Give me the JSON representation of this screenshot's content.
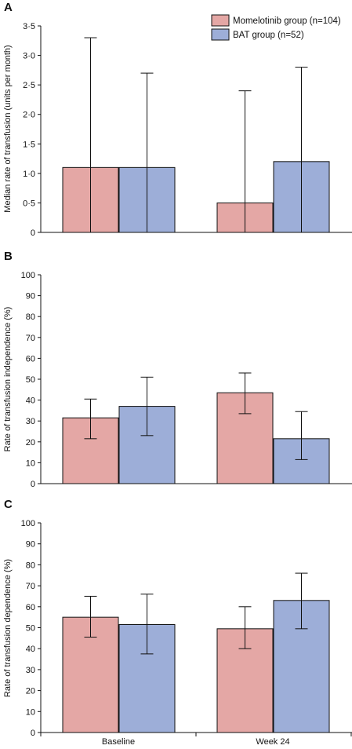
{
  "chart_data": [
    {
      "type": "bar",
      "panel_label": "A",
      "categories": [
        "Baseline",
        "Week 24"
      ],
      "ylabel": "Median rate of transfusion (units per month)",
      "ylim": [
        0,
        3.5
      ],
      "yticks": [
        0,
        0.5,
        1.0,
        1.5,
        2.0,
        2.5,
        3.0,
        3.5
      ],
      "ytick_labels": [
        "0",
        "0·5",
        "1·0",
        "1·5",
        "2·0",
        "2·5",
        "3·0",
        "3·5"
      ],
      "error_style": "range",
      "legend": {
        "placement": "top-right"
      },
      "series": [
        {
          "name": "Momelotinib group (n=104)",
          "color": "#e4a7a5",
          "values": [
            1.1,
            0.5
          ],
          "err_low": [
            0,
            0
          ],
          "err_high": [
            3.3,
            2.4
          ]
        },
        {
          "name": "BAT group (n=52)",
          "color": "#9daed8",
          "values": [
            1.1,
            1.2
          ],
          "err_low": [
            0,
            0
          ],
          "err_high": [
            2.7,
            2.8
          ]
        }
      ]
    },
    {
      "type": "bar",
      "panel_label": "B",
      "categories": [
        "Baseline",
        "Week 24"
      ],
      "ylabel": "Rate of transfusion independence (%)",
      "ylim": [
        0,
        100
      ],
      "yticks": [
        0,
        10,
        20,
        30,
        40,
        50,
        60,
        70,
        80,
        90,
        100
      ],
      "ytick_labels": [
        "0",
        "10",
        "20",
        "30",
        "40",
        "50",
        "60",
        "70",
        "80",
        "90",
        "100"
      ],
      "series": [
        {
          "name": "Momelotinib group (n=104)",
          "color": "#e4a7a5",
          "values": [
            31.5,
            43.5
          ],
          "err_low": [
            21.5,
            33.5
          ],
          "err_high": [
            40.5,
            53
          ]
        },
        {
          "name": "BAT group (n=52)",
          "color": "#9daed8",
          "values": [
            37,
            21.5
          ],
          "err_low": [
            23,
            11.5
          ],
          "err_high": [
            51,
            34.5
          ]
        }
      ]
    },
    {
      "type": "bar",
      "panel_label": "C",
      "categories": [
        "Baseline",
        "Week 24"
      ],
      "ylabel": "Rate of transfusion dependence (%)",
      "ylim": [
        0,
        100
      ],
      "yticks": [
        0,
        10,
        20,
        30,
        40,
        50,
        60,
        70,
        80,
        90,
        100
      ],
      "ytick_labels": [
        "0",
        "10",
        "20",
        "30",
        "40",
        "50",
        "60",
        "70",
        "80",
        "90",
        "100"
      ],
      "series": [
        {
          "name": "Momelotinib group (n=104)",
          "color": "#e4a7a5",
          "values": [
            55,
            49.5
          ],
          "err_low": [
            45.5,
            40
          ],
          "err_high": [
            65,
            60
          ]
        },
        {
          "name": "BAT group (n=52)",
          "color": "#9daed8",
          "values": [
            51.5,
            63
          ],
          "err_low": [
            37.5,
            49.5
          ],
          "err_high": [
            66,
            76
          ]
        }
      ]
    }
  ]
}
